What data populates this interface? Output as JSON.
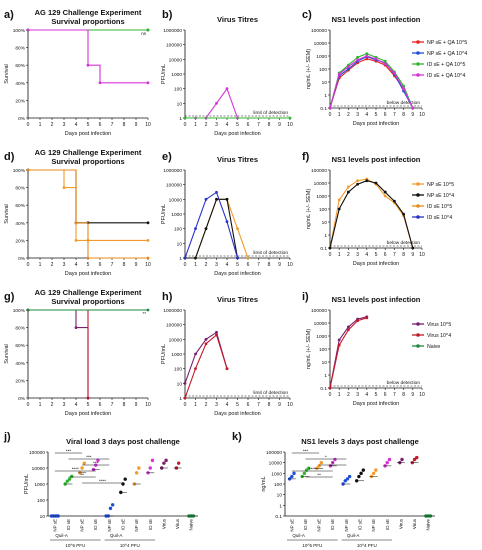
{
  "figure": {
    "panels": [
      {
        "id": "a",
        "letter": "a)",
        "title": "AG 129 Challenge Experiment",
        "subtitle": "Survival proportions",
        "ylabel": "Survival",
        "xlabel": "Days post infection"
      },
      {
        "id": "b",
        "letter": "b)",
        "title": "Virus Titres",
        "ylabel": "PFU/mL",
        "xlabel": "Days post infection",
        "note": "limit of detection"
      },
      {
        "id": "c",
        "letter": "c)",
        "title": "NS1 levels post infection",
        "ylabel": "ng/mL (+/- SEM)",
        "xlabel": "Days post infection",
        "note": "below detection"
      },
      {
        "id": "d",
        "letter": "d)",
        "title": "AG 129 Challenge Experiment",
        "subtitle": "Survival proportions",
        "ylabel": "Survival",
        "xlabel": "Days post infection"
      },
      {
        "id": "e",
        "letter": "e)",
        "title": "Virus Titres",
        "ylabel": "PFU/mL",
        "xlabel": "Days post infection",
        "note": "limit of detection"
      },
      {
        "id": "f",
        "letter": "f)",
        "title": "NS1 levels post infection",
        "ylabel": "ng/mL (+/- SEM)",
        "xlabel": "Days post infection",
        "note": "below detection"
      },
      {
        "id": "g",
        "letter": "g)",
        "title": "AG 129 Challenge Experiment",
        "subtitle": "Survival proportions",
        "ylabel": "Survival",
        "xlabel": "Days post infection"
      },
      {
        "id": "h",
        "letter": "h)",
        "title": "Virus Titres",
        "ylabel": "PFU/mL",
        "xlabel": "Days post infection",
        "note": "limit of detection"
      },
      {
        "id": "i",
        "letter": "i)",
        "title": "NS1 levels post infection",
        "ylabel": "ng/mL (+/- SEM)",
        "xlabel": "Days post infection",
        "note": "below detection"
      },
      {
        "id": "j",
        "letter": "j)",
        "title": "Viral load 3 days post challenge",
        "ylabel": "PFU/mL",
        "xlabel": ""
      },
      {
        "id": "k",
        "letter": "k)",
        "title": "NS1 levels 3 days post challenge",
        "ylabel": "ng/mL",
        "xlabel": ""
      }
    ],
    "legends": [
      {
        "id": "row1",
        "entries": [
          {
            "name": "NP sE + QA 10^5",
            "color": "#e8211c"
          },
          {
            "name": "NP sE + QA 10^4",
            "color": "#1f4fd8"
          },
          {
            "name": "ID sE + QA 10^5",
            "color": "#2fb52f"
          },
          {
            "name": "ID sE + QA 10^4",
            "color": "#d633d6"
          }
        ]
      },
      {
        "id": "row2",
        "entries": [
          {
            "name": "NP sE 10^5",
            "color": "#f39a2b"
          },
          {
            "name": "NP sE 10^4",
            "color": "#111111"
          },
          {
            "name": "ID sE 10^5",
            "color": "#e88a1a"
          },
          {
            "name": "ID sE 10^4",
            "color": "#2a33c7"
          }
        ]
      },
      {
        "id": "row3",
        "entries": [
          {
            "name": "Virus 10^5",
            "color": "#7a1f6e"
          },
          {
            "name": "Virus 10^4",
            "color": "#c41a2a"
          },
          {
            "name": "Naive",
            "color": "#1e8a3a"
          }
        ]
      }
    ],
    "group_labels": {
      "categories": [
        "NP sE",
        "ID sE",
        "NP sE",
        "ID sE",
        "NP sE",
        "ID sE",
        "NP sE",
        "ID sE",
        "Virus",
        "Virus",
        "Naive"
      ],
      "quil_a": "Quil-A",
      "dose1": "10^5 PFU",
      "dose2": "10^4 PFU"
    },
    "significance": {
      "j": [
        "***",
        "***",
        "***",
        "****",
        "**",
        "****"
      ],
      "k": [
        "***",
        "*",
        "*",
        "****",
        "**"
      ],
      "a": "ns",
      "g": "**"
    }
  },
  "chart_data": [
    {
      "panel": "a",
      "type": "line",
      "xlim": [
        0,
        10
      ],
      "ylim": [
        0,
        100
      ],
      "yticks": [
        "0%",
        "20%",
        "40%",
        "60%",
        "80%",
        "100%"
      ],
      "series": [
        {
          "name": "NP sE + QA 10^5",
          "x": [
            0,
            10
          ],
          "y": [
            100,
            100
          ]
        },
        {
          "name": "NP sE + QA 10^4",
          "x": [
            0,
            10
          ],
          "y": [
            100,
            100
          ]
        },
        {
          "name": "ID sE + QA 10^5",
          "x": [
            0,
            10
          ],
          "y": [
            100,
            100
          ]
        },
        {
          "name": "ID sE + QA 10^4",
          "x": [
            0,
            5,
            6,
            10
          ],
          "y": [
            100,
            60,
            40,
            40
          ]
        }
      ]
    },
    {
      "panel": "b",
      "type": "line",
      "xscale": "log",
      "xlim": [
        0,
        10
      ],
      "ylim": [
        1,
        1000000
      ],
      "series": [
        {
          "name": "ID sE + QA 10^4",
          "x": [
            0,
            1,
            2,
            3,
            4,
            5
          ],
          "y": [
            1,
            1,
            1,
            10,
            100,
            1
          ]
        },
        {
          "name": "ID sE + QA 10^5",
          "x": [
            0,
            10
          ],
          "y": [
            1,
            1
          ]
        }
      ]
    },
    {
      "panel": "c",
      "type": "line",
      "xlim": [
        0,
        10
      ],
      "ylim": [
        0.1,
        100000
      ],
      "series": [
        {
          "name": "NP sE + QA 10^5",
          "y": [
            0.1,
            20,
            80,
            300,
            600,
            400,
            200,
            30,
            3,
            0.1
          ]
        },
        {
          "name": "NP sE + QA 10^4",
          "y": [
            0.1,
            30,
            100,
            400,
            900,
            500,
            300,
            40,
            2,
            0.1
          ]
        },
        {
          "name": "ID sE + QA 10^5",
          "y": [
            0.1,
            50,
            200,
            800,
            1500,
            800,
            400,
            60,
            5,
            0.1
          ]
        },
        {
          "name": "ID sE + QA 10^4",
          "y": [
            0.1,
            40,
            150,
            500,
            1000,
            600,
            250,
            50,
            3,
            0.1
          ]
        }
      ]
    },
    {
      "panel": "d",
      "type": "line",
      "xlim": [
        0,
        10
      ],
      "ylim": [
        0,
        100
      ],
      "series": [
        {
          "name": "NP sE 10^5",
          "x": [
            0,
            3,
            4,
            5,
            10
          ],
          "y": [
            100,
            80,
            20,
            20,
            20
          ]
        },
        {
          "name": "NP sE 10^4",
          "x": [
            0,
            4,
            5,
            10
          ],
          "y": [
            100,
            40,
            40,
            40
          ]
        },
        {
          "name": "ID sE 10^5",
          "x": [
            0,
            4,
            5,
            10
          ],
          "y": [
            100,
            40,
            0,
            0
          ]
        }
      ]
    },
    {
      "panel": "e",
      "type": "line",
      "xlim": [
        0,
        10
      ],
      "ylim": [
        1,
        1000000
      ],
      "series": [
        {
          "name": "NP sE 10^5",
          "y": [
            1,
            1,
            100,
            10000,
            10000,
            100,
            1
          ]
        },
        {
          "name": "NP sE 10^4",
          "y": [
            1,
            1,
            100,
            10000,
            10000,
            1
          ]
        },
        {
          "name": "ID sE 10^4",
          "y": [
            1,
            100,
            10000,
            30000,
            300,
            1
          ]
        }
      ]
    },
    {
      "panel": "f",
      "type": "line",
      "xlim": [
        0,
        10
      ],
      "ylim": [
        0.1,
        100000
      ],
      "series": [
        {
          "name": "NP sE 10^5",
          "y": [
            0.1,
            500,
            5000,
            15000,
            20000,
            8000,
            1000,
            300,
            30,
            0.1
          ]
        },
        {
          "name": "NP sE 10^4",
          "y": [
            0.1,
            100,
            2000,
            8000,
            15000,
            10000,
            2000,
            400,
            40,
            0.1
          ]
        }
      ]
    },
    {
      "panel": "g",
      "type": "line",
      "xlim": [
        0,
        10
      ],
      "ylim": [
        0,
        100
      ],
      "series": [
        {
          "name": "Virus 10^5",
          "x": [
            0,
            4,
            5
          ],
          "y": [
            100,
            80,
            0
          ]
        },
        {
          "name": "Virus 10^4",
          "x": [
            0,
            5
          ],
          "y": [
            100,
            0
          ]
        },
        {
          "name": "Naive",
          "x": [
            0,
            10
          ],
          "y": [
            100,
            100
          ]
        }
      ]
    },
    {
      "panel": "h",
      "type": "line",
      "xlim": [
        0,
        10
      ],
      "ylim": [
        1,
        1000000
      ],
      "series": [
        {
          "name": "Virus 10^5",
          "y": [
            10,
            1000,
            10000,
            30000,
            100
          ]
        },
        {
          "name": "Virus 10^4",
          "y": [
            1,
            100,
            5000,
            20000,
            100
          ]
        }
      ]
    },
    {
      "panel": "i",
      "type": "line",
      "xlim": [
        0,
        10
      ],
      "ylim": [
        0.1,
        100000
      ],
      "series": [
        {
          "name": "Virus 10^5",
          "y": [
            0.1,
            500,
            5000,
            20000,
            30000
          ]
        },
        {
          "name": "Virus 10^4",
          "y": [
            0.1,
            200,
            3000,
            15000,
            25000
          ]
        }
      ]
    },
    {
      "panel": "j",
      "type": "scatter",
      "ylim": [
        10,
        100000
      ],
      "yticks": [
        "10",
        "100",
        "1000",
        "10000",
        "100000"
      ],
      "series": [
        {
          "name": "NP sE Quil-A 10^5",
          "values": [
            10,
            10,
            10,
            10
          ]
        },
        {
          "name": "ID sE Quil-A 10^5",
          "values": [
            1000,
            1500,
            2000,
            3000
          ]
        },
        {
          "name": "NP sE 10^5",
          "values": [
            5000,
            10000,
            20000
          ]
        },
        {
          "name": "ID sE 10^5",
          "values": [
            8000,
            15000,
            30000
          ]
        },
        {
          "name": "NP sE Quil-A 10^4",
          "values": [
            10,
            10,
            30,
            50
          ]
        },
        {
          "name": "ID sE Quil-A 10^4",
          "values": [
            300,
            1000,
            2000
          ]
        },
        {
          "name": "NP sE 10^4",
          "values": [
            1000,
            5000,
            10000
          ]
        },
        {
          "name": "ID sE 10^4",
          "values": [
            5000,
            10000,
            30000
          ]
        },
        {
          "name": "Virus 10^5",
          "values": [
            10000,
            20000,
            30000
          ]
        },
        {
          "name": "Virus 10^4",
          "values": [
            10000,
            20000
          ]
        },
        {
          "name": "Naive",
          "values": [
            10,
            10,
            10
          ]
        }
      ]
    },
    {
      "panel": "k",
      "type": "scatter",
      "ylim": [
        0.1,
        100000
      ],
      "yticks": [
        "0.1",
        "1",
        "10",
        "100",
        "1000",
        "10000",
        "100000"
      ],
      "series": [
        {
          "name": "NP sE Quil-A 10^5",
          "values": [
            300,
            500,
            1000
          ]
        },
        {
          "name": "ID sE Quil-A 10^5",
          "values": [
            500,
            1000,
            2000,
            3000
          ]
        },
        {
          "name": "NP sE 10^5",
          "values": [
            3000,
            5000,
            10000
          ]
        },
        {
          "name": "ID sE 10^5",
          "values": [
            5000,
            10000,
            20000
          ]
        },
        {
          "name": "NP sE Quil-A 10^4",
          "values": [
            100,
            200,
            300,
            500
          ]
        },
        {
          "name": "ID sE Quil-A 10^4",
          "values": [
            200,
            500,
            1000,
            2000
          ]
        },
        {
          "name": "NP sE 10^4",
          "values": [
            500,
            1000,
            2000
          ]
        },
        {
          "name": "ID sE 10^4",
          "values": [
            5000,
            10000,
            20000
          ]
        },
        {
          "name": "Virus 10^5",
          "values": [
            10000,
            20000
          ]
        },
        {
          "name": "Virus 10^4",
          "values": [
            10000,
            20000,
            30000
          ]
        },
        {
          "name": "Naive",
          "values": [
            0.1,
            0.1,
            0.1
          ]
        }
      ]
    }
  ]
}
